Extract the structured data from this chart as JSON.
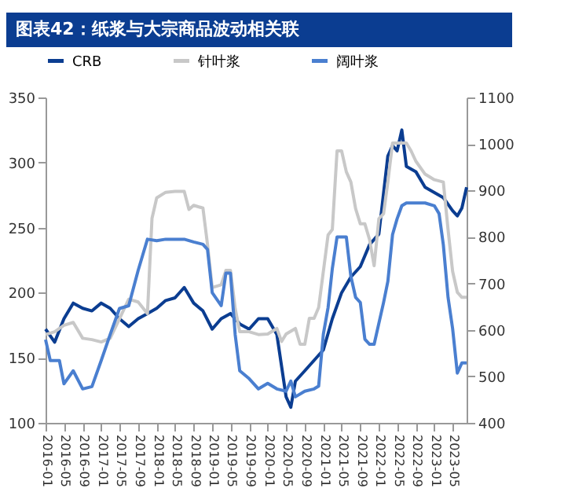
{
  "chart_data": {
    "type": "line",
    "title": "图表42：纸浆与大宗商品波动相关联",
    "x": [
      "2016-01",
      "2016-03",
      "2016-05",
      "2016-07",
      "2016-09",
      "2016-11",
      "2017-01",
      "2017-03",
      "2017-05",
      "2017-07",
      "2017-09",
      "2017-11",
      "2018-01",
      "2018-03",
      "2018-05",
      "2018-07",
      "2018-09",
      "2018-11",
      "2019-01",
      "2019-03",
      "2019-05",
      "2019-07",
      "2019-09",
      "2019-11",
      "2020-01",
      "2020-03",
      "2020-05",
      "2020-06",
      "2020-07",
      "2020-09",
      "2020-11",
      "2021-01",
      "2021-03",
      "2021-05",
      "2021-07",
      "2021-09",
      "2021-11",
      "2022-01",
      "2022-03",
      "2022-04",
      "2022-05",
      "2022-06",
      "2022-07",
      "2022-09",
      "2022-11",
      "2023-01",
      "2023-03",
      "2023-05",
      "2023-06",
      "2023-07",
      "2023-08"
    ],
    "series": [
      {
        "name": "CRB",
        "color": "#0b3d91",
        "values": [
          172,
          162,
          180,
          192,
          188,
          186,
          192,
          188,
          180,
          174,
          180,
          184,
          188,
          194,
          196,
          204,
          192,
          186,
          172,
          180,
          184,
          176,
          172,
          180,
          180,
          168,
          120,
          112,
          132,
          140,
          148,
          156,
          180,
          200,
          212,
          220,
          237,
          245,
          305,
          313,
          309,
          325,
          297,
          293,
          281,
          277,
          273,
          263,
          259,
          265,
          281
        ]
      },
      {
        "name": "针叶浆",
        "color": "#c8c8c8",
        "axis": "y2",
        "x": [
          "2016-01",
          "2016-03",
          "2016-05",
          "2016-07",
          "2016-09",
          "2016-11",
          "2017-01",
          "2017-03",
          "2017-05",
          "2017-07",
          "2017-09",
          "2017-11",
          "2017-12",
          "2018-01",
          "2018-03",
          "2018-05",
          "2018-07",
          "2018-08",
          "2018-09",
          "2018-11",
          "2018-12",
          "2019-01",
          "2019-03",
          "2019-04",
          "2019-05",
          "2019-06",
          "2019-07",
          "2019-09",
          "2019-11",
          "2020-01",
          "2020-03",
          "2020-04",
          "2020-05",
          "2020-07",
          "2020-08",
          "2020-09",
          "2020-10",
          "2020-11",
          "2020-12",
          "2021-01",
          "2021-02",
          "2021-03",
          "2021-04",
          "2021-05",
          "2021-06",
          "2021-07",
          "2021-08",
          "2021-09",
          "2021-10",
          "2021-11",
          "2021-12",
          "2022-01",
          "2022-02",
          "2022-03",
          "2022-04",
          "2022-05",
          "2022-06",
          "2022-07",
          "2022-08",
          "2022-09",
          "2022-11",
          "2023-01",
          "2023-03",
          "2023-04",
          "2023-05",
          "2023-06",
          "2023-07",
          "2023-08"
        ],
        "values": [
          590,
          596,
          610,
          616,
          582,
          579,
          574,
          582,
          624,
          666,
          660,
          635,
          840,
          884,
          896,
          898,
          898,
          859,
          868,
          862,
          784,
          691,
          697,
          728,
          728,
          646,
          596,
          596,
          590,
          591,
          603,
          575,
          591,
          603,
          569,
          569,
          625,
          625,
          648,
          726,
          804,
          816,
          985,
          985,
          940,
          918,
          861,
          828,
          828,
          794,
          738,
          839,
          850,
          918,
          1002,
          1002,
          1002,
          1002,
          985,
          963,
          935,
          923,
          918,
          816,
          726,
          681,
          670,
          670
        ]
      },
      {
        "name": "阔叶浆",
        "color": "#4a7fd0",
        "axis": "y2",
        "x": [
          "2016-01",
          "2016-02",
          "2016-04",
          "2016-05",
          "2016-07",
          "2016-09",
          "2016-11",
          "2017-01",
          "2017-03",
          "2017-05",
          "2017-07",
          "2017-09",
          "2017-10",
          "2017-11",
          "2018-01",
          "2018-03",
          "2018-05",
          "2018-07",
          "2018-09",
          "2018-11",
          "2018-12",
          "2019-01",
          "2019-03",
          "2019-04",
          "2019-05",
          "2019-06",
          "2019-07",
          "2019-09",
          "2019-11",
          "2020-01",
          "2020-03",
          "2020-05",
          "2020-06",
          "2020-07",
          "2020-09",
          "2020-11",
          "2020-12",
          "2021-01",
          "2021-02",
          "2021-03",
          "2021-04",
          "2021-05",
          "2021-06",
          "2021-07",
          "2021-08",
          "2021-09",
          "2021-10",
          "2021-11",
          "2021-12",
          "2022-01",
          "2022-02",
          "2022-03",
          "2022-04",
          "2022-05",
          "2022-06",
          "2022-07",
          "2022-09",
          "2022-11",
          "2023-01",
          "2023-02",
          "2023-03",
          "2023-04",
          "2023-05",
          "2023-06",
          "2023-07",
          "2023-08"
        ],
        "values": [
          579,
          534,
          534,
          484,
          512,
          473,
          478,
          534,
          590,
          646,
          652,
          728,
          761,
          795,
          792,
          795,
          795,
          795,
          789,
          784,
          773,
          680,
          652,
          722,
          722,
          590,
          512,
          495,
          473,
          485,
          473,
          468,
          490,
          456,
          468,
          473,
          479,
          591,
          648,
          732,
          800,
          800,
          800,
          715,
          670,
          659,
          580,
          569,
          569,
          614,
          659,
          704,
          805,
          839,
          867,
          873,
          873,
          873,
          867,
          850,
          783,
          670,
          603,
          507,
          529,
          529
        ]
      }
    ],
    "xlim": [
      "2016-01",
      "2023-08"
    ],
    "xticks": [
      "2016-01",
      "2016-05",
      "2016-09",
      "2017-01",
      "2017-05",
      "2017-09",
      "2018-01",
      "2018-05",
      "2018-09",
      "2019-01",
      "2019-05",
      "2019-09",
      "2020-01",
      "2020-05",
      "2020-09",
      "2021-01",
      "2021-05",
      "2021-09",
      "2022-01",
      "2022-05",
      "2022-09",
      "2023-01",
      "2023-05"
    ],
    "ylim": [
      100,
      350
    ],
    "yticks": [
      100,
      150,
      200,
      250,
      300,
      350
    ],
    "y2lim": [
      400,
      1100
    ],
    "y2ticks": [
      400,
      500,
      600,
      700,
      800,
      900,
      1000,
      1100
    ],
    "legend": "top",
    "grid": false
  }
}
